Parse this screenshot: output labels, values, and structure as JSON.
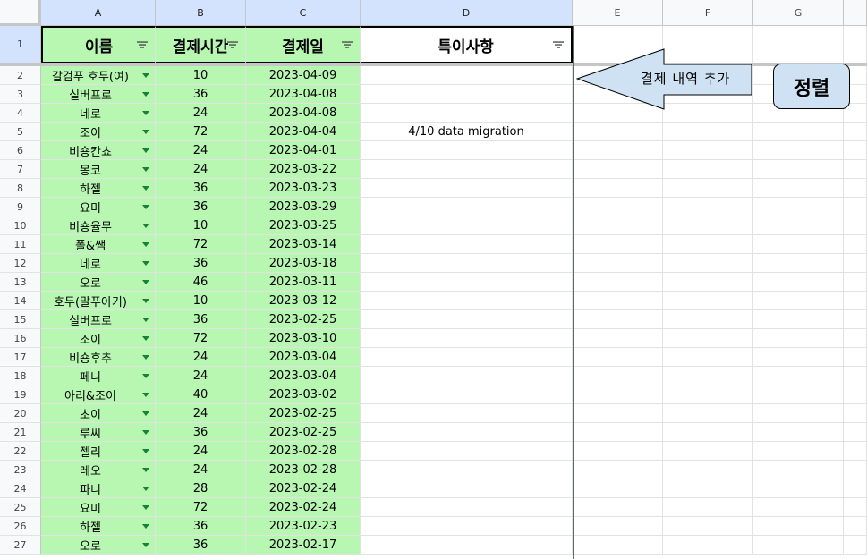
{
  "columns": [
    "A",
    "B",
    "C",
    "D",
    "E",
    "F",
    "G"
  ],
  "header_row_number": "1",
  "headers": {
    "name": "이름",
    "payment_time": "결제시간",
    "payment_date": "결제일",
    "notes": "특이사항"
  },
  "rows": [
    {
      "num": "2",
      "name": "갈검푸 호두(여)",
      "time": "10",
      "date": "2023-04-09",
      "note": ""
    },
    {
      "num": "3",
      "name": "실버프로",
      "time": "36",
      "date": "2023-04-08",
      "note": ""
    },
    {
      "num": "4",
      "name": "네로",
      "time": "24",
      "date": "2023-04-08",
      "note": ""
    },
    {
      "num": "5",
      "name": "조이",
      "time": "72",
      "date": "2023-04-04",
      "note": "4/10 data migration"
    },
    {
      "num": "6",
      "name": "비숑칸쵸",
      "time": "24",
      "date": "2023-04-01",
      "note": ""
    },
    {
      "num": "7",
      "name": "몽코",
      "time": "24",
      "date": "2023-03-22",
      "note": ""
    },
    {
      "num": "8",
      "name": "하젤",
      "time": "36",
      "date": "2023-03-23",
      "note": ""
    },
    {
      "num": "9",
      "name": "요미",
      "time": "36",
      "date": "2023-03-29",
      "note": ""
    },
    {
      "num": "10",
      "name": "비숑율무",
      "time": "10",
      "date": "2023-03-25",
      "note": ""
    },
    {
      "num": "11",
      "name": "폴&쌤",
      "time": "72",
      "date": "2023-03-14",
      "note": ""
    },
    {
      "num": "12",
      "name": "네로",
      "time": "36",
      "date": "2023-03-18",
      "note": ""
    },
    {
      "num": "13",
      "name": "오로",
      "time": "46",
      "date": "2023-03-11",
      "note": ""
    },
    {
      "num": "14",
      "name": "호두(말푸아기)",
      "time": "10",
      "date": "2023-03-12",
      "note": ""
    },
    {
      "num": "15",
      "name": "실버프로",
      "time": "36",
      "date": "2023-02-25",
      "note": ""
    },
    {
      "num": "16",
      "name": "조이",
      "time": "72",
      "date": "2023-03-10",
      "note": ""
    },
    {
      "num": "17",
      "name": "비숑후추",
      "time": "24",
      "date": "2023-03-04",
      "note": ""
    },
    {
      "num": "18",
      "name": "페니",
      "time": "24",
      "date": "2023-03-04",
      "note": ""
    },
    {
      "num": "19",
      "name": "아리&조이",
      "time": "40",
      "date": "2023-03-02",
      "note": ""
    },
    {
      "num": "20",
      "name": "초이",
      "time": "24",
      "date": "2023-02-25",
      "note": ""
    },
    {
      "num": "21",
      "name": "루씨",
      "time": "36",
      "date": "2023-02-25",
      "note": ""
    },
    {
      "num": "22",
      "name": "젤리",
      "time": "24",
      "date": "2023-02-28",
      "note": ""
    },
    {
      "num": "23",
      "name": "레오",
      "time": "24",
      "date": "2023-02-28",
      "note": ""
    },
    {
      "num": "24",
      "name": "파니",
      "time": "28",
      "date": "2023-02-24",
      "note": ""
    },
    {
      "num": "25",
      "name": "요미",
      "time": "72",
      "date": "2023-02-24",
      "note": ""
    },
    {
      "num": "26",
      "name": "하젤",
      "time": "36",
      "date": "2023-02-23",
      "note": ""
    },
    {
      "num": "27",
      "name": "오로",
      "time": "36",
      "date": "2023-02-17",
      "note": ""
    }
  ],
  "annotations": {
    "arrow_label": "결제 내역 추가",
    "sort_button": "정렬"
  },
  "colors": {
    "column_fill": "#b7f7b2",
    "selected_header": "#d3e3fd",
    "shape_fill": "#cfe2f3",
    "dropdown_arrow": "#188038"
  }
}
